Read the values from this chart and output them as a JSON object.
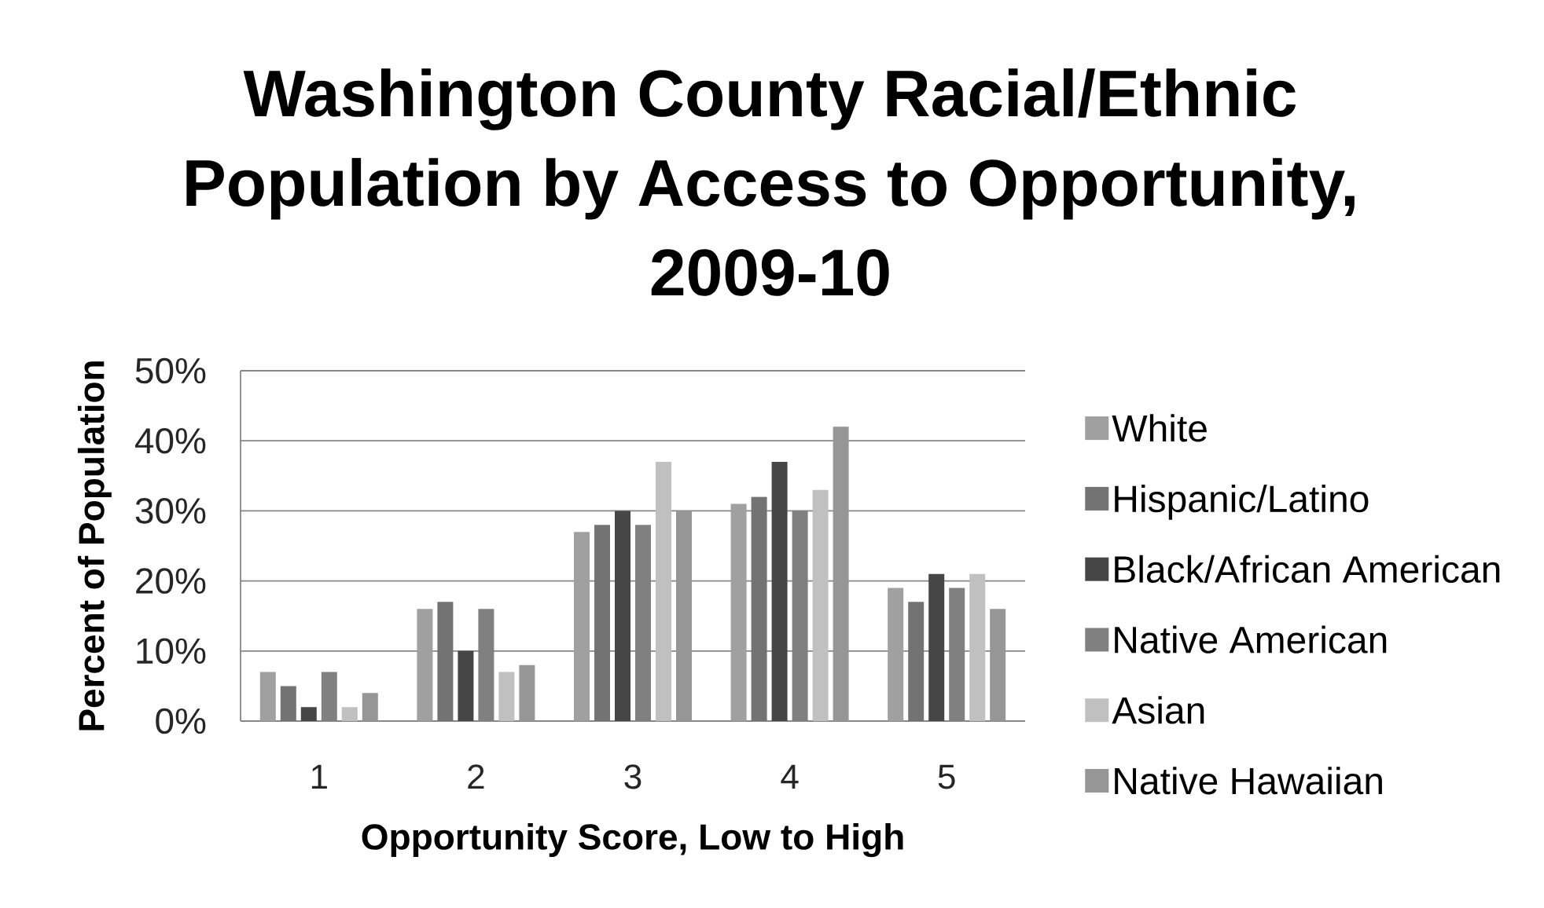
{
  "chart_data": {
    "type": "bar",
    "title": "Washington County Racial/Ethnic Population by Access to Opportunity, 2009-10",
    "xlabel": "Opportunity Score, Low to High",
    "ylabel": "Percent of Population",
    "categories": [
      "1",
      "2",
      "3",
      "4",
      "5"
    ],
    "series": [
      {
        "name": "White",
        "color": "#a0a0a0",
        "values": [
          7,
          16,
          27,
          31,
          19
        ]
      },
      {
        "name": "Hispanic/Latino",
        "color": "#737373",
        "values": [
          5,
          17,
          28,
          32,
          17
        ]
      },
      {
        "name": "Black/African American",
        "color": "#464646",
        "values": [
          2,
          10,
          30,
          37,
          21
        ]
      },
      {
        "name": "Native American",
        "color": "#808080",
        "values": [
          7,
          16,
          28,
          30,
          19
        ]
      },
      {
        "name": "Asian",
        "color": "#c0c0c0",
        "values": [
          2,
          7,
          37,
          33,
          21
        ]
      },
      {
        "name": "Native Hawaiian",
        "color": "#969696",
        "values": [
          4,
          8,
          30,
          42,
          16
        ]
      }
    ],
    "ylim": [
      0,
      50
    ],
    "yticks": [
      {
        "value": 0,
        "label": "0%"
      },
      {
        "value": 10,
        "label": "10%"
      },
      {
        "value": 20,
        "label": "20%"
      },
      {
        "value": 30,
        "label": "30%"
      },
      {
        "value": 40,
        "label": "40%"
      },
      {
        "value": 50,
        "label": "50%"
      }
    ],
    "grid": "y",
    "legend": "right"
  }
}
